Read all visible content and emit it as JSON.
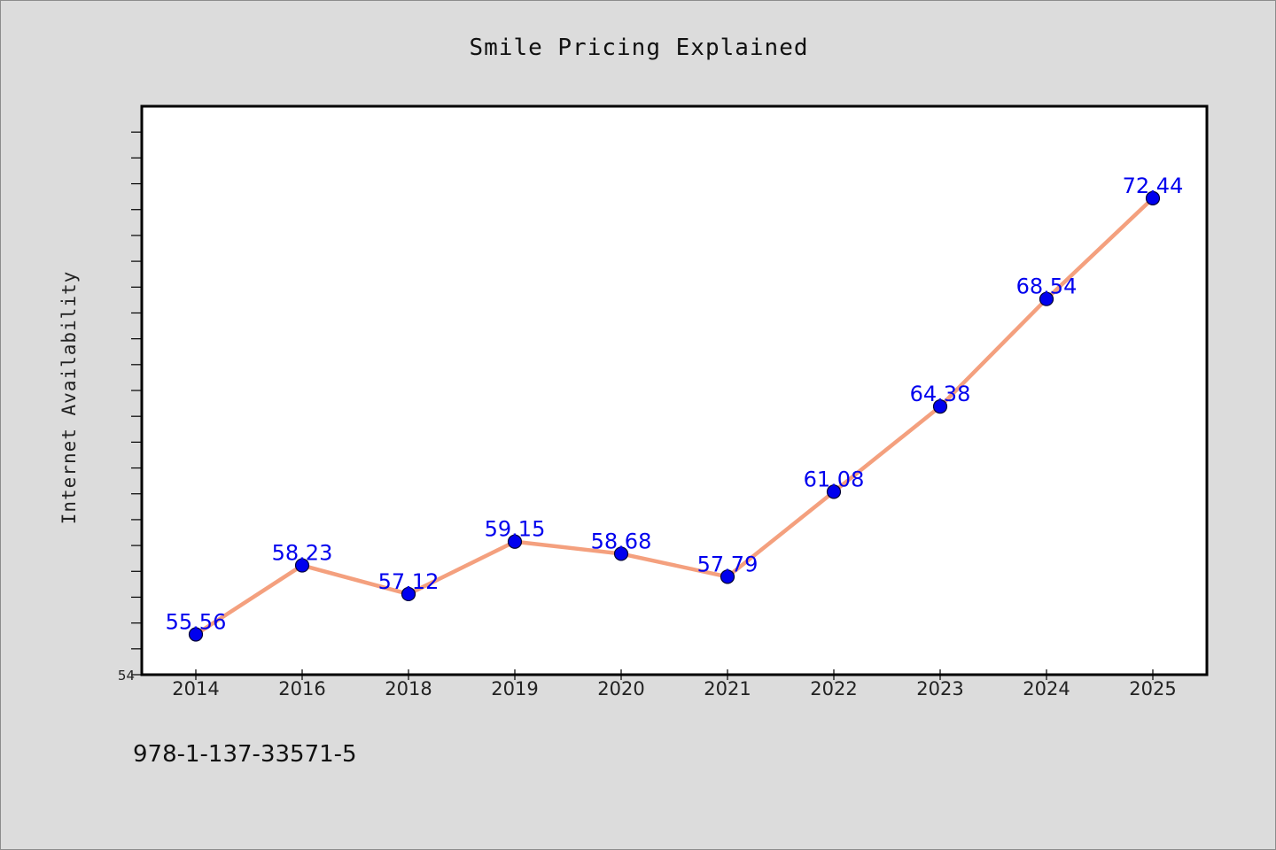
{
  "chart_data": {
    "type": "line",
    "title": "Smile Pricing Explained",
    "xlabel": "",
    "ylabel": "Internet Availability",
    "categories": [
      "2014",
      "2016",
      "2018",
      "2019",
      "2020",
      "2021",
      "2022",
      "2023",
      "2024",
      "2025"
    ],
    "series": [
      {
        "values": [
          55.56,
          58.23,
          57.12,
          59.15,
          58.68,
          57.79,
          61.08,
          64.38,
          68.54,
          72.44
        ]
      }
    ],
    "data_labels": [
      "55.56",
      "58.23",
      "57.12",
      "59.15",
      "58.68",
      "57.79",
      "61.08",
      "64.38",
      "68.54",
      "72.44"
    ],
    "ylim": [
      54,
      76
    ],
    "ytick_labels": [
      "54"
    ],
    "ytick_step": 1,
    "grid": false,
    "legend": "none",
    "colors": {
      "line": "#f4a07e",
      "marker_fill": "#0000ee",
      "marker_edge": "#000033",
      "data_label": "#0000ee",
      "plot_background": "#ffffff",
      "figure_background": "#dcdcdc"
    }
  },
  "footer": {
    "code": "978-1-137-33571-5"
  }
}
